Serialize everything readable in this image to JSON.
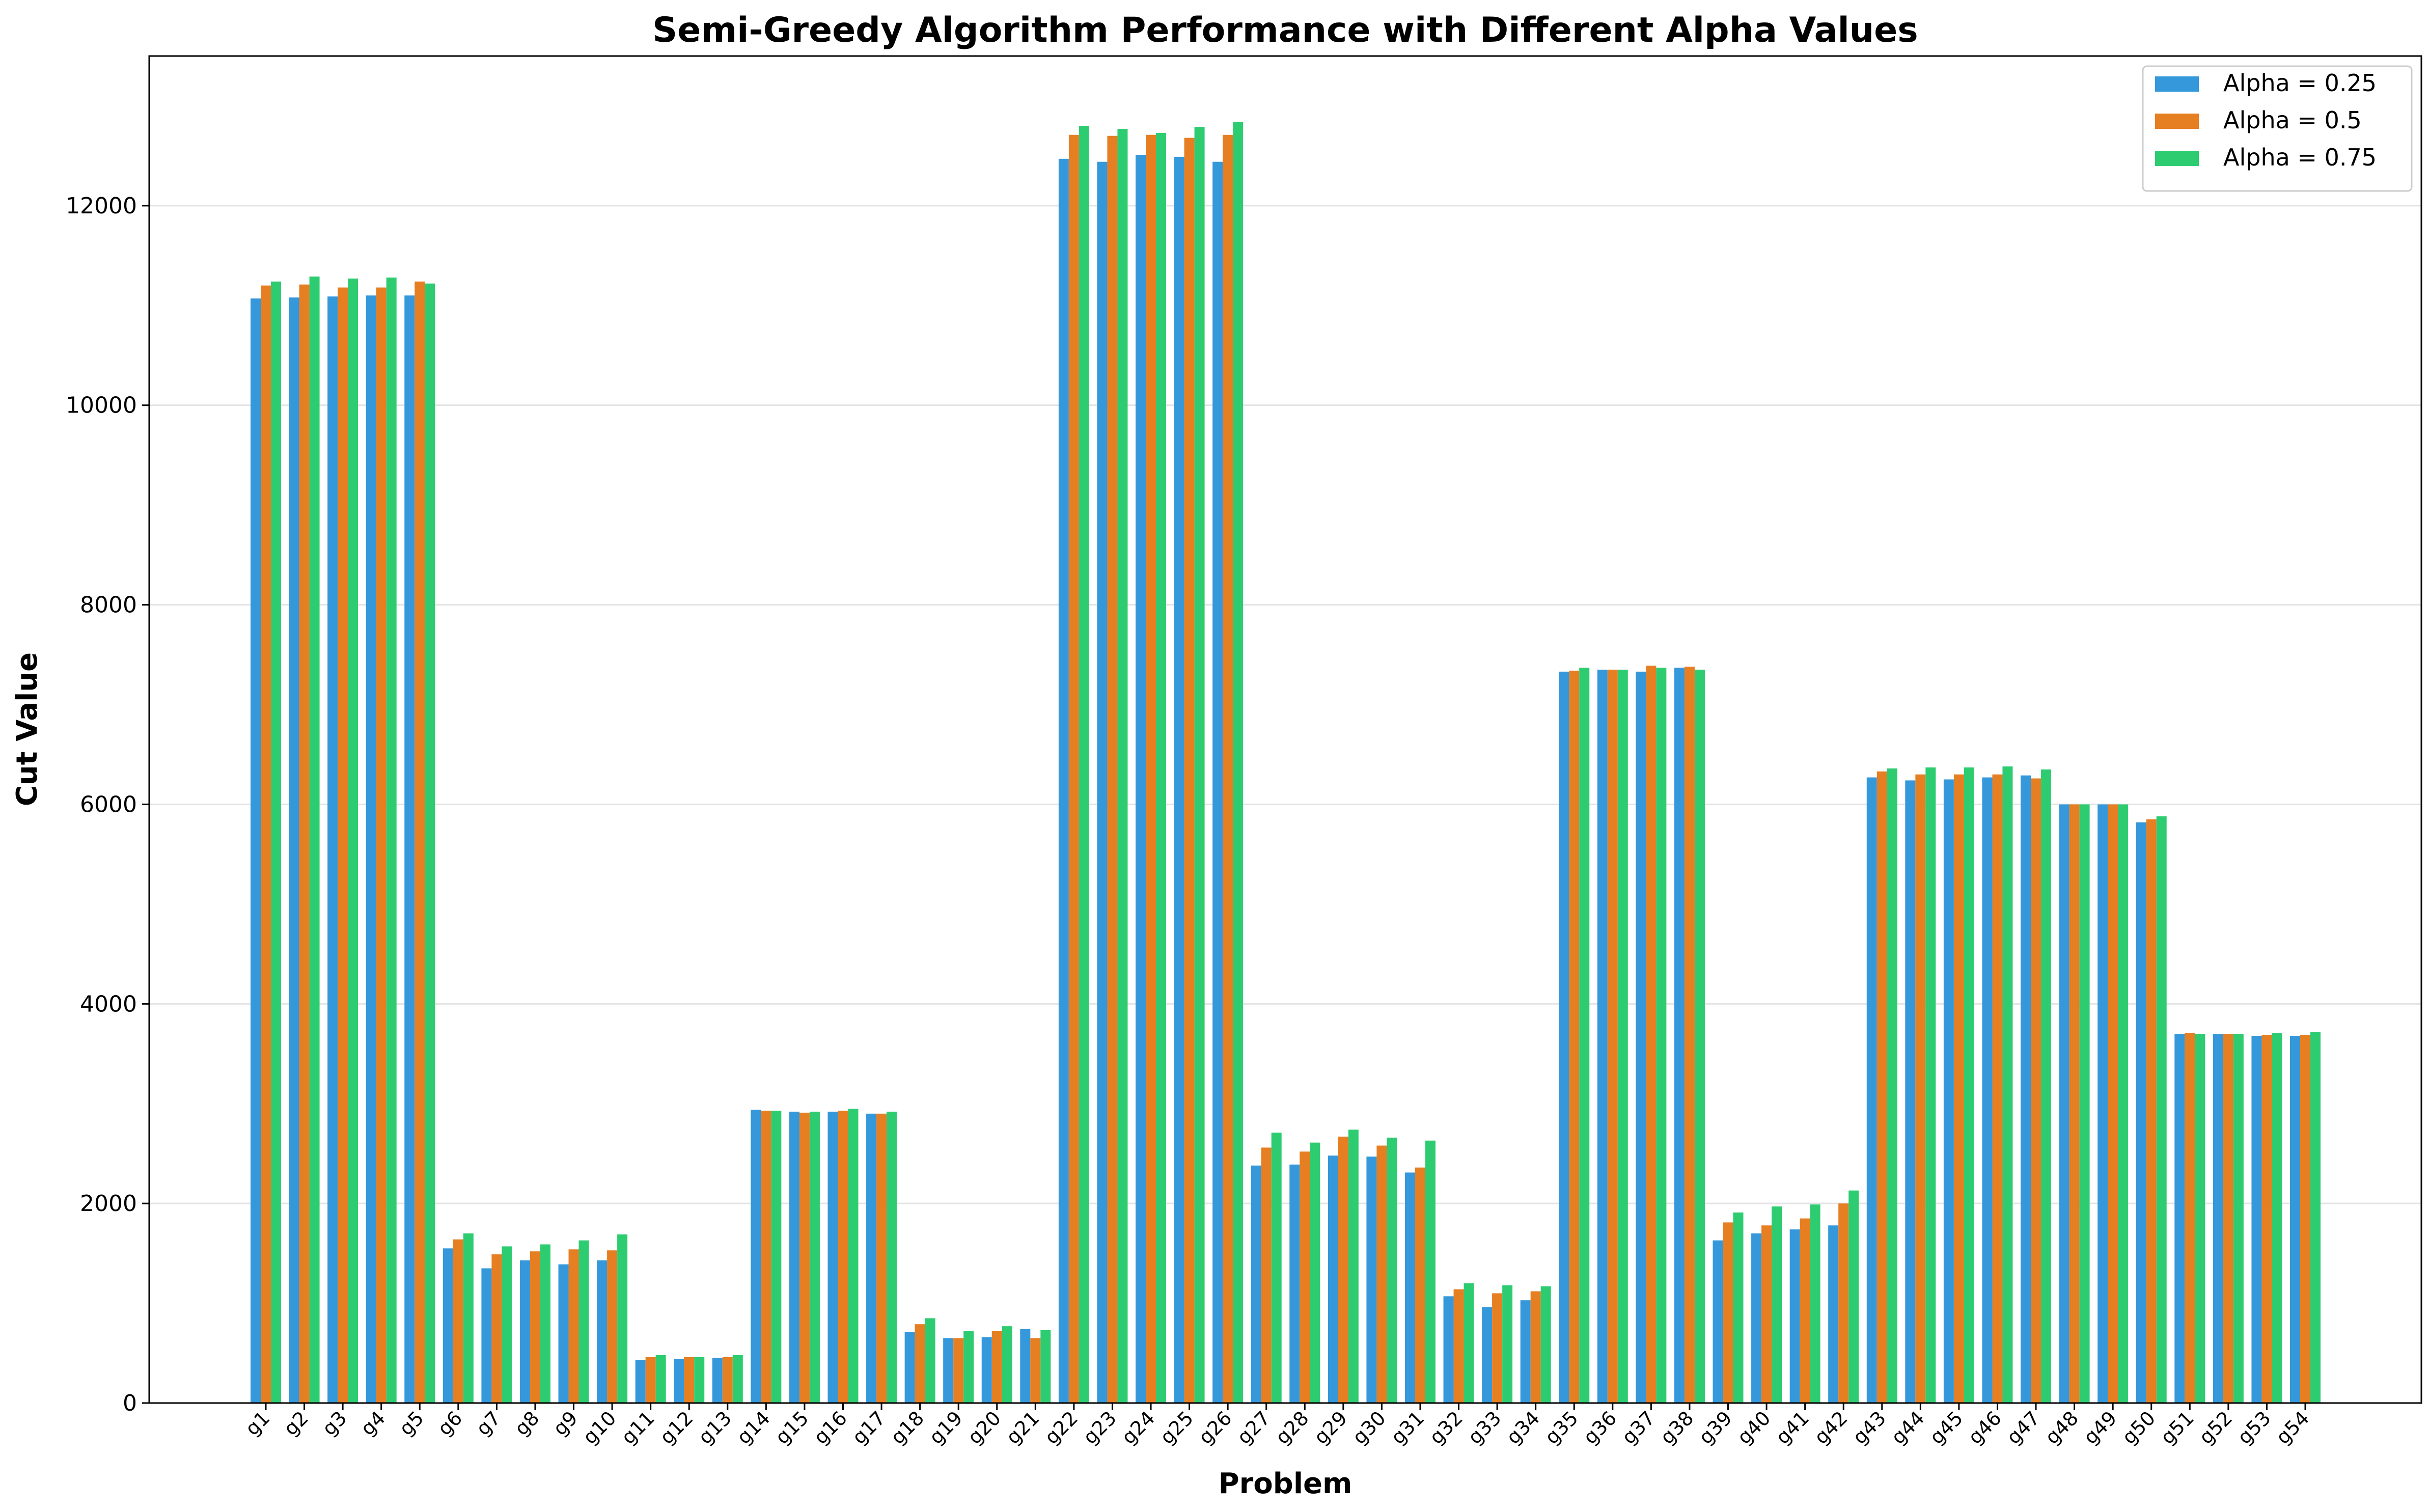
{
  "chart_data": {
    "type": "bar",
    "title": "Semi-Greedy Algorithm Performance with Different Alpha Values",
    "xlabel": "Problem",
    "ylabel": "Cut Value",
    "ylim": [
      0,
      13500
    ],
    "yticks": [
      0,
      2000,
      4000,
      6000,
      8000,
      10000,
      12000
    ],
    "grid": "y",
    "legend_position": "top-right",
    "categories": [
      "g1",
      "g2",
      "g3",
      "g4",
      "g5",
      "g6",
      "g7",
      "g8",
      "g9",
      "g10",
      "g11",
      "g12",
      "g13",
      "g14",
      "g15",
      "g16",
      "g17",
      "g18",
      "g19",
      "g20",
      "g21",
      "g22",
      "g23",
      "g24",
      "g25",
      "g26",
      "g27",
      "g28",
      "g29",
      "g30",
      "g31",
      "g32",
      "g33",
      "g34",
      "g35",
      "g36",
      "g37",
      "g38",
      "g39",
      "g40",
      "g41",
      "g42",
      "g43",
      "g44",
      "g45",
      "g46",
      "g47",
      "g48",
      "g49",
      "g50",
      "g51",
      "g52",
      "g53",
      "g54"
    ],
    "series": [
      {
        "name": "Alpha = 0.25",
        "color": "#3498db",
        "values": [
          11070,
          11080,
          11090,
          11100,
          11100,
          1550,
          1350,
          1430,
          1390,
          1430,
          430,
          440,
          450,
          2940,
          2920,
          2920,
          2900,
          710,
          650,
          660,
          740,
          12470,
          12440,
          12510,
          12490,
          12440,
          2380,
          2390,
          2480,
          2470,
          2310,
          1070,
          960,
          1030,
          7330,
          7350,
          7330,
          7370,
          1630,
          1700,
          1740,
          1780,
          6270,
          6240,
          6250,
          6270,
          6290,
          6000,
          6000,
          5820,
          3700,
          3700,
          3680,
          3680
        ]
      },
      {
        "name": "Alpha = 0.5",
        "color": "#e67e22",
        "values": [
          11200,
          11210,
          11180,
          11180,
          11240,
          1640,
          1490,
          1520,
          1540,
          1530,
          460,
          460,
          460,
          2930,
          2910,
          2930,
          2900,
          790,
          650,
          720,
          650,
          12710,
          12700,
          12710,
          12680,
          12710,
          2560,
          2520,
          2670,
          2580,
          2360,
          1140,
          1100,
          1120,
          7340,
          7350,
          7390,
          7380,
          1810,
          1780,
          1850,
          2000,
          6330,
          6300,
          6300,
          6300,
          6260,
          6000,
          6000,
          5850,
          3710,
          3700,
          3690,
          3690
        ]
      },
      {
        "name": "Alpha = 0.75",
        "color": "#2ecc71",
        "values": [
          11240,
          11290,
          11270,
          11280,
          11220,
          1700,
          1570,
          1590,
          1630,
          1690,
          480,
          460,
          480,
          2930,
          2920,
          2950,
          2920,
          850,
          720,
          770,
          730,
          12800,
          12770,
          12730,
          12790,
          12840,
          2710,
          2610,
          2740,
          2660,
          2630,
          1200,
          1180,
          1170,
          7370,
          7350,
          7370,
          7350,
          1910,
          1970,
          1990,
          2130,
          6360,
          6370,
          6370,
          6380,
          6350,
          6000,
          6000,
          5880,
          3700,
          3700,
          3710,
          3720
        ]
      }
    ]
  }
}
